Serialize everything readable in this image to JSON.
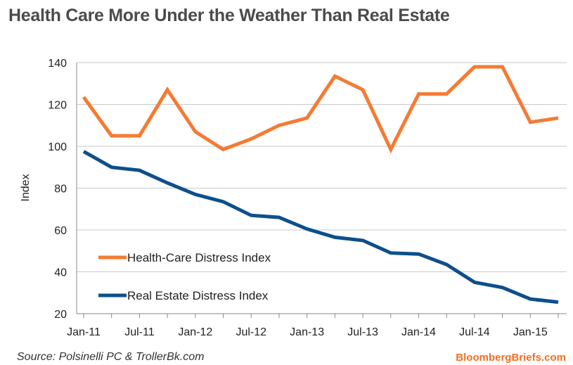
{
  "header": {
    "title": "Health Care More Under the Weather Than Real Estate"
  },
  "footer": {
    "source": "Source: Polsinelli PC & TrollerBk.com",
    "brand": "BloombergBriefs.com"
  },
  "chart_data": {
    "type": "line",
    "title": "Health Care More Under the Weather Than Real Estate",
    "xlabel": "",
    "ylabel": "Index",
    "ylim": [
      20,
      140
    ],
    "y_ticks": [
      20,
      40,
      60,
      80,
      100,
      120,
      140
    ],
    "x_tick_labels": [
      "Jan-11",
      "Jul-11",
      "Jan-12",
      "Jul-12",
      "Jan-13",
      "Jul-13",
      "Jan-14",
      "Jul-14",
      "Jan-15"
    ],
    "x": [
      "Jan-11",
      "Apr-11",
      "Jul-11",
      "Oct-11",
      "Jan-12",
      "Apr-12",
      "Jul-12",
      "Oct-12",
      "Jan-13",
      "Apr-13",
      "Jul-13",
      "Oct-13",
      "Jan-14",
      "Apr-14",
      "Jul-14",
      "Oct-14",
      "Jan-15",
      "Apr-15"
    ],
    "grid": true,
    "legend_position": "bottom-left",
    "series": [
      {
        "name": "Health-Care Distress Index",
        "color": "#f47b34",
        "values": [
          123.5,
          105,
          105,
          127,
          107,
          98.5,
          103.5,
          110,
          113.5,
          133.5,
          127,
          98.5,
          125,
          125,
          138,
          138,
          111.5,
          113.5
        ]
      },
      {
        "name": "Real Estate Distress Index",
        "color": "#0d4f8b",
        "values": [
          97.5,
          90,
          88.5,
          82.5,
          77,
          73.5,
          67,
          66,
          60.5,
          56.5,
          55,
          49,
          48.5,
          43.5,
          35,
          32.5,
          27,
          25.5
        ]
      }
    ]
  }
}
